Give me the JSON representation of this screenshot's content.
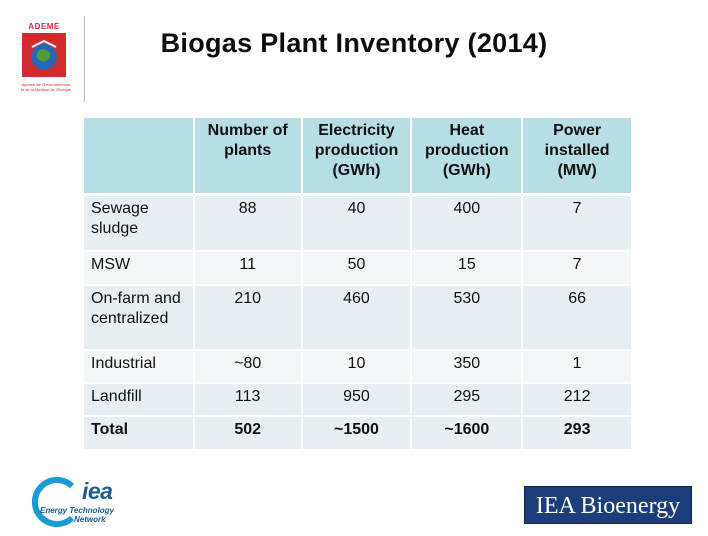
{
  "logos": {
    "ademe": {
      "brand": "ADEME",
      "tagline_line1": "Agence de l'Environnement",
      "tagline_line2": "et de la Maîtrise de l'Energie"
    },
    "iea_network": {
      "mark": "iea",
      "line1": "Energy Technology",
      "line2": "Network"
    },
    "iea_bioenergy": "IEA Bioenergy"
  },
  "title": "Biogas Plant Inventory (2014)",
  "table": {
    "headers": [
      "",
      "Number of plants",
      "Electricity production (GWh)",
      "Heat production (GWh)",
      "Power installed (MW)"
    ],
    "rows": [
      {
        "label": "Sewage sludge",
        "plants": "88",
        "electricity": "40",
        "heat": "400",
        "power": "7"
      },
      {
        "label": "MSW",
        "plants": "11",
        "electricity": "50",
        "heat": "15",
        "power": "7"
      },
      {
        "label": "On-farm and centralized",
        "plants": "210",
        "electricity": "460",
        "heat": "530",
        "power": "66"
      },
      {
        "label": "Industrial",
        "plants": "~80",
        "electricity": "10",
        "heat": "350",
        "power": "1"
      },
      {
        "label": "Landfill",
        "plants": "113",
        "electricity": "950",
        "heat": "295",
        "power": "212"
      }
    ],
    "total": {
      "label": "Total",
      "plants": "502",
      "electricity": "~1500",
      "heat": "~1600",
      "power": "293"
    }
  },
  "colors": {
    "header_bg": "#b7dde5",
    "row_bg_a": "#e8eff2",
    "row_bg_b": "#f4f7f8",
    "ademe_red": "#d12a2f",
    "iea_blue": "#1b5c95",
    "bioenergy_navy": "#1b3d7a"
  }
}
